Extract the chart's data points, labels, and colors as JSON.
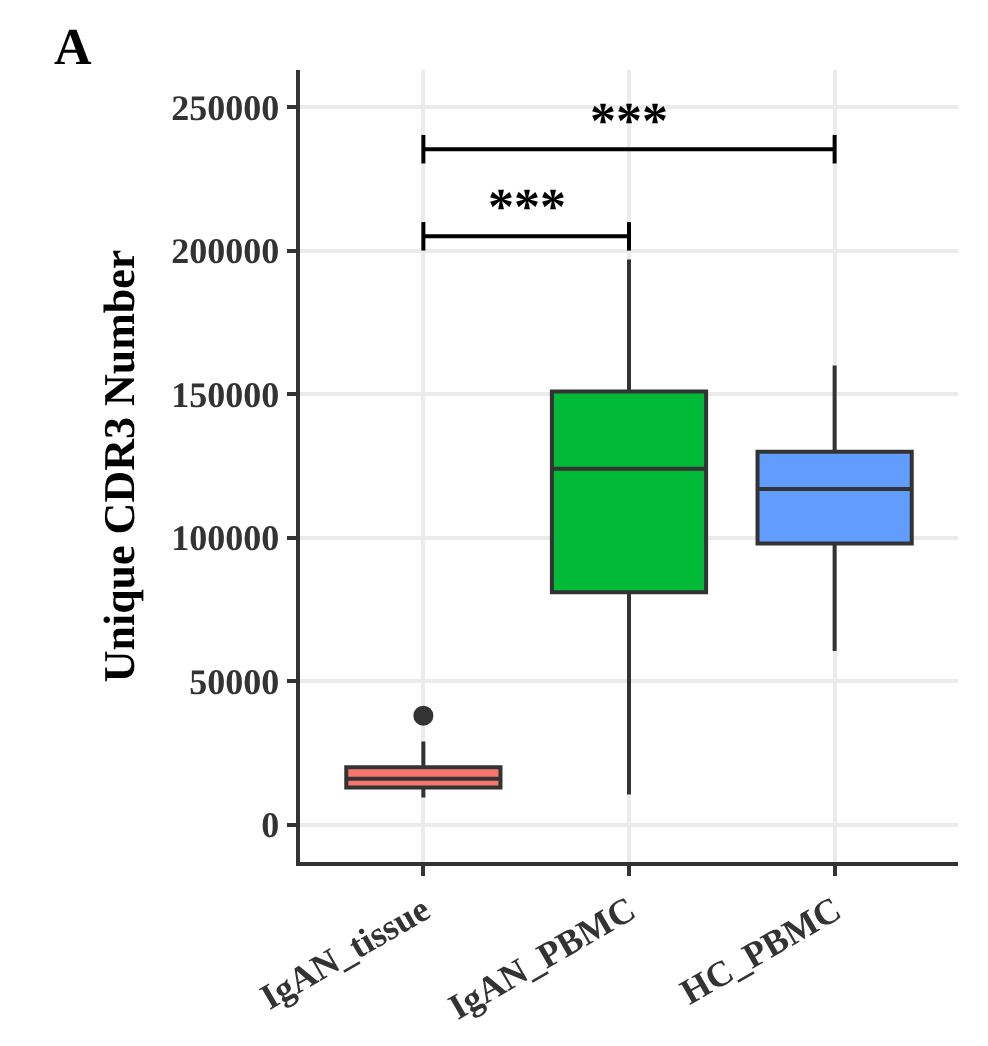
{
  "chart_data": {
    "type": "box",
    "ylabel": "Unique CDR3 Number",
    "categories": [
      "IgAN_tissue",
      "IgAN_PBMC",
      "HC_PBMC"
    ],
    "colors": [
      "#f8766d",
      "#00ba38",
      "#619cff"
    ],
    "boxes": [
      {
        "low": 9500,
        "q1": 13000,
        "median": 16000,
        "q3": 20000,
        "high": 29000,
        "outliers": [
          38000
        ]
      },
      {
        "low": 10500,
        "q1": 81000,
        "median": 124000,
        "q3": 151000,
        "high": 197000
      },
      {
        "low": 60500,
        "q1": 98000,
        "median": 117000,
        "q3": 130000,
        "high": 160000
      }
    ],
    "ylim": [
      -13000,
      263000
    ],
    "yticks": [
      0,
      50000,
      100000,
      150000,
      200000,
      250000
    ],
    "grid": true,
    "legend": false,
    "annotations": [
      "A",
      "***",
      "***"
    ]
  }
}
